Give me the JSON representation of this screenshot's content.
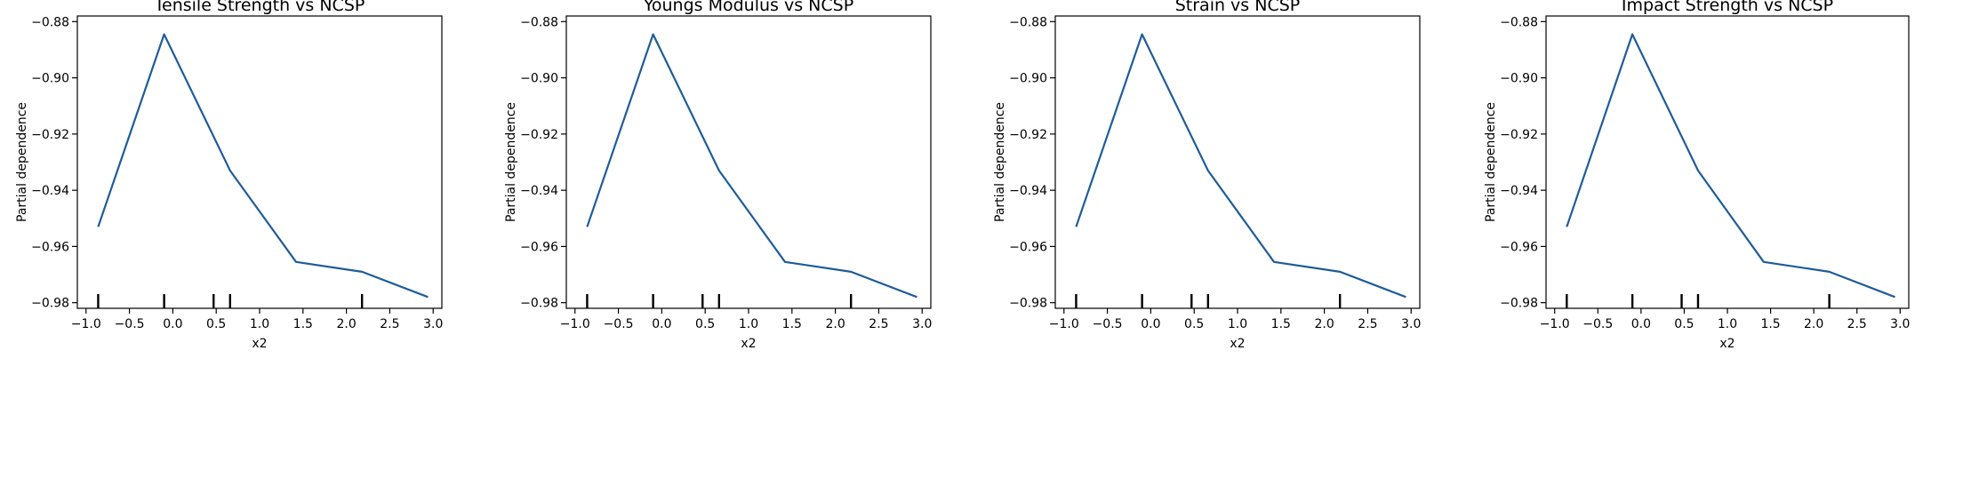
{
  "chart_data": [
    {
      "type": "line",
      "title": "Tensile Strength vs NCSP",
      "xlabel": "x2",
      "ylabel": "Partial dependence",
      "xlim": [
        -1.0,
        3.0
      ],
      "ylim": [
        -0.982,
        -0.878
      ],
      "x_ticks": [
        -1.0,
        -0.5,
        0.0,
        0.5,
        1.0,
        1.5,
        2.0,
        2.5,
        3.0
      ],
      "x_tick_labels": [
        "−1.0",
        "−0.5",
        "0.0",
        "0.5",
        "1.0",
        "1.5",
        "2.0",
        "2.5",
        "3.0"
      ],
      "y_ticks": [
        -0.98,
        -0.96,
        -0.94,
        -0.92,
        -0.9,
        -0.88
      ],
      "y_tick_labels": [
        "−0.98",
        "−0.96",
        "−0.94",
        "−0.92",
        "−0.90",
        "−0.88"
      ],
      "series": [
        {
          "name": "partial dependence",
          "color": "#1f5c99",
          "x": [
            -0.86,
            -0.1,
            0.66,
            1.42,
            2.18,
            2.94
          ],
          "y": [
            -0.953,
            -0.8845,
            -0.933,
            -0.9655,
            -0.969,
            -0.978
          ]
        }
      ],
      "rug_x": [
        -0.86,
        -0.1,
        0.47,
        0.66,
        2.18
      ]
    },
    {
      "type": "line",
      "title": "Youngs Modulus vs NCSP",
      "xlabel": "x2",
      "ylabel": "Partial dependence",
      "xlim": [
        -1.0,
        3.0
      ],
      "ylim": [
        -0.982,
        -0.878
      ],
      "x_ticks": [
        -1.0,
        -0.5,
        0.0,
        0.5,
        1.0,
        1.5,
        2.0,
        2.5,
        3.0
      ],
      "x_tick_labels": [
        "−1.0",
        "−0.5",
        "0.0",
        "0.5",
        "1.0",
        "1.5",
        "2.0",
        "2.5",
        "3.0"
      ],
      "y_ticks": [
        -0.98,
        -0.96,
        -0.94,
        -0.92,
        -0.9,
        -0.88
      ],
      "y_tick_labels": [
        "−0.98",
        "−0.96",
        "−0.94",
        "−0.92",
        "−0.90",
        "−0.88"
      ],
      "series": [
        {
          "name": "partial dependence",
          "color": "#1f5c99",
          "x": [
            -0.86,
            -0.1,
            0.66,
            1.42,
            2.18,
            2.94
          ],
          "y": [
            -0.953,
            -0.8845,
            -0.933,
            -0.9655,
            -0.969,
            -0.978
          ]
        }
      ],
      "rug_x": [
        -0.86,
        -0.1,
        0.47,
        0.66,
        2.18
      ]
    },
    {
      "type": "line",
      "title": "Strain vs NCSP",
      "xlabel": "x2",
      "ylabel": "Partial dependence",
      "xlim": [
        -1.0,
        3.0
      ],
      "ylim": [
        -0.982,
        -0.878
      ],
      "x_ticks": [
        -1.0,
        -0.5,
        0.0,
        0.5,
        1.0,
        1.5,
        2.0,
        2.5,
        3.0
      ],
      "x_tick_labels": [
        "−1.0",
        "−0.5",
        "0.0",
        "0.5",
        "1.0",
        "1.5",
        "2.0",
        "2.5",
        "3.0"
      ],
      "y_ticks": [
        -0.98,
        -0.96,
        -0.94,
        -0.92,
        -0.9,
        -0.88
      ],
      "y_tick_labels": [
        "−0.98",
        "−0.96",
        "−0.94",
        "−0.92",
        "−0.90",
        "−0.88"
      ],
      "series": [
        {
          "name": "partial dependence",
          "color": "#1f5c99",
          "x": [
            -0.86,
            -0.1,
            0.66,
            1.42,
            2.18,
            2.94
          ],
          "y": [
            -0.953,
            -0.8845,
            -0.933,
            -0.9655,
            -0.969,
            -0.978
          ]
        }
      ],
      "rug_x": [
        -0.86,
        -0.1,
        0.47,
        0.66,
        2.18
      ]
    },
    {
      "type": "line",
      "title": "Impact Strength vs NCSP",
      "xlabel": "x2",
      "ylabel": "Partial dependence",
      "xlim": [
        -1.0,
        3.0
      ],
      "ylim": [
        -0.982,
        -0.878
      ],
      "x_ticks": [
        -1.0,
        -0.5,
        0.0,
        0.5,
        1.0,
        1.5,
        2.0,
        2.5,
        3.0
      ],
      "x_tick_labels": [
        "−1.0",
        "−0.5",
        "0.0",
        "0.5",
        "1.0",
        "1.5",
        "2.0",
        "2.5",
        "3.0"
      ],
      "y_ticks": [
        -0.98,
        -0.96,
        -0.94,
        -0.92,
        -0.9,
        -0.88
      ],
      "y_tick_labels": [
        "−0.98",
        "−0.96",
        "−0.94",
        "−0.92",
        "−0.90",
        "−0.88"
      ],
      "series": [
        {
          "name": "partial dependence",
          "color": "#1f5c99",
          "x": [
            -0.86,
            -0.1,
            0.66,
            1.42,
            2.18,
            2.94
          ],
          "y": [
            -0.953,
            -0.8845,
            -0.933,
            -0.9655,
            -0.969,
            -0.978
          ]
        }
      ],
      "rug_x": [
        -0.86,
        -0.1,
        0.47,
        0.66,
        2.18
      ]
    }
  ]
}
